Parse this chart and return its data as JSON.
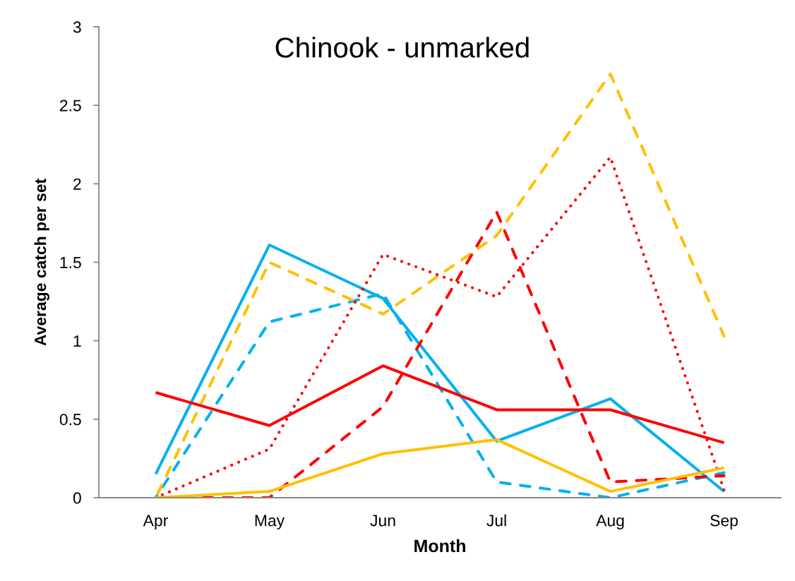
{
  "chart_data": {
    "type": "line",
    "title": "Chinook - unmarked",
    "xlabel": "Month",
    "ylabel": "Average catch per set",
    "categories": [
      "Apr",
      "May",
      "Jun",
      "Jul",
      "Aug",
      "Sep"
    ],
    "series": [
      {
        "color": "#00b0f0",
        "line_style": "solid",
        "values": [
          0.15,
          1.61,
          1.27,
          0.36,
          0.63,
          0.04
        ]
      },
      {
        "color": "#00b0f0",
        "line_style": "dashed",
        "values": [
          0,
          1.12,
          1.3,
          0.1,
          0,
          0.16
        ]
      },
      {
        "color": "#ffc000",
        "line_style": "dashed",
        "values": [
          0,
          1.5,
          1.17,
          1.67,
          2.7,
          1.03
        ]
      },
      {
        "color": "#ff0000",
        "line_style": "dotted",
        "values": [
          0,
          0.31,
          1.55,
          1.28,
          2.17,
          0.05
        ]
      },
      {
        "color": "#ff0000",
        "line_style": "dashed",
        "values": [
          0,
          0,
          0.58,
          1.82,
          0.1,
          0.14
        ]
      },
      {
        "color": "#ff0000",
        "line_style": "solid",
        "values": [
          0.67,
          0.46,
          0.84,
          0.56,
          0.56,
          0.35
        ]
      },
      {
        "color": "#ffc000",
        "line_style": "solid",
        "values": [
          0,
          0.04,
          0.28,
          0.37,
          0.04,
          0.19
        ]
      }
    ],
    "ylim": [
      0,
      3
    ],
    "yticks": [
      0,
      0.5,
      1,
      1.5,
      2,
      2.5,
      3
    ]
  }
}
